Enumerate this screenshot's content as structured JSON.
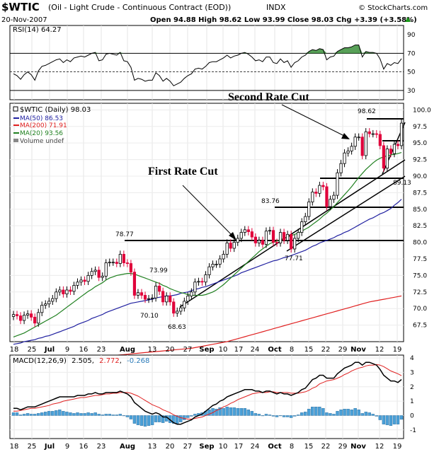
{
  "header": {
    "symbol": "$WTIC",
    "description": "(Oil - Light Crude - Continuous Contract (EOD))",
    "exchange": "INDX",
    "date": "20-Nov-2007",
    "quote": "Open 94.88  High 98.62  Low 93.99  Close 98.03  Chg +3.39 (+3.58%)",
    "quote_direction": "up",
    "watermark": "© StockCharts.com"
  },
  "colors": {
    "up_candle": "#ffffff",
    "down_candle": "#e0003a",
    "ma50": "#2020a0",
    "ma200": "#e02020",
    "ma20": "#208020",
    "macd_line": "#000000",
    "signal_line": "#e02020",
    "histogram": "#4aa0d8",
    "rsi_fill": "#208020"
  },
  "rsi": {
    "legend": "RSI(14) 64.27",
    "ylim": [
      20,
      100
    ],
    "ticks": [
      "90",
      "70",
      "50",
      "30"
    ],
    "levels": [
      70,
      50,
      30
    ]
  },
  "main": {
    "legend_title": "$WTIC (Daily) 98.03",
    "legend_ma50": "MA(50) 86.53",
    "legend_ma200": "MA(200) 71.91",
    "legend_ma20": "MA(20) 93.56",
    "legend_volume": "Volume undef",
    "ylim": [
      65,
      101
    ],
    "ticks": [
      "100.0",
      "97.5",
      "95.0",
      "92.5",
      "90.0",
      "87.5",
      "85.0",
      "82.5",
      "80.0",
      "77.5",
      "75.0",
      "72.5",
      "70.0",
      "67.5"
    ],
    "annotations": {
      "second_rate_cut": "Second Rate Cut",
      "first_rate_cut": "First Rate Cut"
    },
    "price_labels": {
      "p_98_62": "98.62",
      "p_89_13": "89.13",
      "p_83_76": "83.76",
      "p_78_77": "78.77",
      "p_73_99": "73.99",
      "p_70_10": "70.10",
      "p_68_63": "68.63",
      "p_77_71": "77.71"
    }
  },
  "macd": {
    "legend_name": "MACD(12,26,9)",
    "legend_macd": "2.505",
    "legend_signal": "2.772",
    "legend_hist": "-0.268",
    "ylim": [
      -1.6,
      4.2
    ],
    "ticks": [
      "4",
      "3",
      "2",
      "1",
      "0",
      "-1"
    ]
  },
  "xaxis": {
    "labels": [
      "18",
      "25",
      "Jul",
      "9",
      "16",
      "23",
      "Aug",
      "13",
      "20",
      "27",
      "Sep",
      "10",
      "17",
      "24",
      "Oct",
      "8",
      "15",
      "22",
      "29",
      "Nov",
      "12",
      "19"
    ],
    "bold": [
      "Jul",
      "Aug",
      "Sep",
      "Oct",
      "Nov"
    ]
  },
  "chart_data": {
    "type": "candlestick",
    "title": "$WTIC (Daily) 98.03",
    "x": [
      "Jun 18",
      "Jun 19",
      "Jun 20",
      "Jun 21",
      "Jun 22",
      "Jun 25",
      "Jun 26",
      "Jun 27",
      "Jun 28",
      "Jun 29",
      "Jul 2",
      "Jul 3",
      "Jul 5",
      "Jul 6",
      "Jul 9",
      "Jul 10",
      "Jul 11",
      "Jul 12",
      "Jul 13",
      "Jul 16",
      "Jul 17",
      "Jul 18",
      "Jul 19",
      "Jul 20",
      "Jul 23",
      "Jul 24",
      "Jul 25",
      "Jul 26",
      "Jul 27",
      "Jul 30",
      "Jul 31",
      "Aug 1",
      "Aug 2",
      "Aug 3",
      "Aug 6",
      "Aug 7",
      "Aug 8",
      "Aug 9",
      "Aug 10",
      "Aug 13",
      "Aug 14",
      "Aug 15",
      "Aug 16",
      "Aug 17",
      "Aug 20",
      "Aug 21",
      "Aug 22",
      "Aug 23",
      "Aug 24",
      "Aug 27",
      "Aug 28",
      "Aug 29",
      "Aug 30",
      "Aug 31",
      "Sep 4",
      "Sep 5",
      "Sep 6",
      "Sep 7",
      "Sep 10",
      "Sep 11",
      "Sep 12",
      "Sep 13",
      "Sep 14",
      "Sep 17",
      "Sep 18",
      "Sep 19",
      "Sep 20",
      "Sep 21",
      "Sep 24",
      "Sep 25",
      "Sep 26",
      "Sep 27",
      "Sep 28",
      "Oct 1",
      "Oct 2",
      "Oct 3",
      "Oct 4",
      "Oct 5",
      "Oct 8",
      "Oct 9",
      "Oct 10",
      "Oct 11",
      "Oct 12",
      "Oct 15",
      "Oct 16",
      "Oct 17",
      "Oct 18",
      "Oct 19",
      "Oct 22",
      "Oct 23",
      "Oct 24",
      "Oct 25",
      "Oct 26",
      "Oct 29",
      "Oct 30",
      "Oct 31",
      "Nov 1",
      "Nov 2",
      "Nov 5",
      "Nov 6",
      "Nov 7",
      "Nov 8",
      "Nov 9",
      "Nov 12",
      "Nov 13",
      "Nov 14",
      "Nov 15",
      "Nov 16",
      "Nov 19",
      "Nov 20"
    ],
    "close": [
      69.1,
      68.9,
      68.2,
      69.0,
      69.2,
      68.7,
      67.8,
      69.4,
      70.5,
      70.7,
      71.1,
      71.5,
      72.5,
      72.8,
      72.2,
      72.8,
      72.6,
      73.5,
      74.0,
      74.3,
      74.1,
      75.0,
      75.6,
      75.8,
      74.7,
      74.9,
      76.9,
      77.0,
      77.0,
      76.8,
      78.2,
      76.9,
      76.8,
      75.5,
      72.0,
      72.4,
      72.0,
      71.4,
      71.5,
      71.6,
      73.4,
      72.6,
      71.0,
      71.9,
      71.0,
      69.3,
      69.6,
      70.1,
      71.1,
      71.9,
      72.5,
      74.0,
      74.1,
      74.0,
      75.1,
      76.3,
      76.7,
      76.7,
      77.5,
      78.2,
      79.9,
      79.1,
      80.0,
      80.6,
      81.5,
      81.9,
      81.6,
      80.8,
      79.9,
      80.3,
      79.7,
      81.7,
      81.8,
      80.0,
      79.9,
      81.5,
      80.3,
      81.2,
      79.0,
      80.6,
      81.5,
      83.1,
      83.9,
      86.1,
      87.6,
      87.4,
      88.6,
      88.4,
      85.4,
      86.5,
      87.1,
      90.5,
      91.9,
      93.5,
      93.8,
      94.5,
      95.9,
      95.9,
      93.1,
      96.7,
      96.4,
      96.4,
      96.3,
      94.6,
      91.2,
      94.1,
      93.4,
      94.8,
      94.6,
      98.0
    ],
    "ma50": [
      64.6,
      64.7,
      64.8,
      65.0,
      65.1,
      65.2,
      65.3,
      65.5,
      65.6,
      65.8,
      65.9,
      66.1,
      66.3,
      66.5,
      66.7,
      66.9,
      67.1,
      67.3,
      67.6,
      67.8,
      68.0,
      68.2,
      68.5,
      68.7,
      68.9,
      69.1,
      69.4,
      69.6,
      69.8,
      70.0,
      70.2,
      70.4,
      70.6,
      70.8,
      70.9,
      71.0,
      71.1,
      71.2,
      71.3,
      71.4,
      71.6,
      71.7,
      71.8,
      71.9,
      71.9,
      72.0,
      72.1,
      72.3,
      72.4,
      72.5,
      72.7,
      72.9,
      73.0,
      73.2,
      73.3,
      73.5,
      73.7,
      73.9,
      74.1,
      74.3,
      74.5,
      74.7,
      74.9,
      75.1,
      75.4,
      75.6,
      75.8,
      76.0,
      76.2,
      76.4,
      76.6,
      76.8,
      77.0,
      77.2,
      77.3,
      77.5,
      77.7,
      77.8,
      78.0,
      78.2,
      78.4,
      78.6,
      78.8,
      79.1,
      79.4,
      79.6,
      79.9,
      80.1,
      80.3,
      80.5,
      80.7,
      81.0,
      81.2,
      81.5,
      81.7,
      82.0,
      82.3,
      82.6,
      82.9,
      83.2,
      83.5,
      83.7,
      84.0,
      84.3,
      84.5,
      84.8,
      85.1,
      85.6,
      86.0,
      86.5
    ],
    "ma200": [
      61.5,
      61.55,
      61.6,
      61.65,
      61.7,
      61.75,
      61.8,
      61.85,
      61.9,
      61.95,
      62.0,
      62.05,
      62.1,
      62.15,
      62.2,
      62.25,
      62.3,
      62.35,
      62.4,
      62.45,
      62.5,
      62.55,
      62.6,
      62.65,
      62.7,
      62.75,
      62.8,
      62.85,
      62.9,
      62.95,
      63.0,
      63.05,
      63.1,
      63.15,
      63.2,
      63.25,
      63.3,
      63.35,
      63.4,
      63.45,
      63.5,
      63.55,
      63.6,
      63.65,
      63.7,
      63.75,
      63.8,
      63.85,
      63.9,
      63.95,
      64.0,
      64.1,
      64.2,
      64.3,
      64.4,
      64.5,
      64.6,
      64.7,
      64.8,
      64.9,
      65.0,
      65.15,
      65.3,
      65.45,
      65.6,
      65.75,
      65.9,
      66.05,
      66.2,
      66.35,
      66.5,
      66.65,
      66.8,
      66.95,
      67.1,
      67.25,
      67.4,
      67.55,
      67.7,
      67.85,
      68.0,
      68.15,
      68.3,
      68.45,
      68.6,
      68.75,
      68.9,
      69.05,
      69.2,
      69.35,
      69.5,
      69.65,
      69.8,
      69.95,
      70.1,
      70.25,
      70.4,
      70.55,
      70.7,
      70.85,
      71.0,
      71.1,
      71.2,
      71.3,
      71.4,
      71.5,
      71.6,
      71.7,
      71.8,
      71.9
    ],
    "ma20": [
      65.7,
      65.9,
      66.1,
      66.3,
      66.6,
      66.9,
      67.2,
      67.5,
      67.8,
      68.1,
      68.4,
      68.7,
      69.0,
      69.4,
      69.8,
      70.2,
      70.6,
      71.0,
      71.4,
      71.8,
      72.2,
      72.6,
      72.9,
      73.3,
      73.6,
      73.9,
      74.3,
      74.6,
      74.8,
      75.0,
      75.1,
      75.2,
      75.3,
      75.3,
      75.2,
      75.0,
      74.8,
      74.6,
      74.4,
      74.2,
      74.0,
      73.8,
      73.5,
      73.3,
      73.0,
      72.8,
      72.6,
      72.4,
      72.3,
      72.1,
      72.0,
      72.0,
      72.0,
      72.0,
      72.1,
      72.3,
      72.5,
      72.8,
      73.2,
      73.6,
      74.1,
      74.6,
      75.1,
      75.6,
      76.1,
      76.6,
      77.1,
      77.6,
      78.1,
      78.6,
      79.0,
      79.4,
      79.8,
      80.0,
      80.2,
      80.4,
      80.6,
      80.8,
      81.0,
      81.2,
      81.4,
      81.7,
      82.0,
      82.3,
      82.7,
      83.1,
      83.5,
      84.0,
      84.4,
      84.9,
      85.4,
      86.0,
      86.6,
      87.2,
      87.8,
      88.4,
      89.1,
      89.8,
      90.4,
      91.0,
      91.5,
      92.0,
      92.4,
      92.7,
      92.9,
      93.1,
      93.2,
      93.3,
      93.4,
      93.56
    ],
    "rsi": [
      48,
      46,
      42,
      47,
      50,
      47,
      41,
      51,
      56,
      57,
      59,
      61,
      63,
      64,
      60,
      63,
      61,
      65,
      66,
      67,
      66,
      68,
      70,
      71,
      62,
      63,
      69,
      70,
      69,
      68,
      71,
      62,
      61,
      55,
      41,
      43,
      42,
      40,
      41,
      41,
      49,
      46,
      40,
      43,
      40,
      35,
      37,
      39,
      43,
      46,
      48,
      53,
      54,
      53,
      56,
      60,
      61,
      61,
      63,
      65,
      68,
      65,
      67,
      68,
      70,
      71,
      69,
      66,
      62,
      63,
      61,
      66,
      66,
      60,
      59,
      64,
      60,
      62,
      55,
      60,
      62,
      66,
      68,
      72,
      74,
      73,
      75,
      74,
      63,
      66,
      67,
      72,
      74,
      76,
      76,
      77,
      79,
      79,
      66,
      72,
      71,
      71,
      70,
      64,
      53,
      59,
      57,
      60,
      59,
      64.27
    ],
    "macd": [
      0.5,
      0.5,
      0.4,
      0.5,
      0.6,
      0.6,
      0.6,
      0.7,
      0.8,
      0.9,
      1.0,
      1.1,
      1.2,
      1.3,
      1.3,
      1.3,
      1.3,
      1.3,
      1.4,
      1.4,
      1.4,
      1.5,
      1.5,
      1.6,
      1.5,
      1.5,
      1.6,
      1.6,
      1.6,
      1.6,
      1.7,
      1.6,
      1.5,
      1.3,
      0.9,
      0.7,
      0.5,
      0.3,
      0.2,
      0.1,
      0.2,
      0.1,
      -0.1,
      -0.1,
      -0.3,
      -0.5,
      -0.6,
      -0.6,
      -0.5,
      -0.4,
      -0.3,
      -0.1,
      0.0,
      0.1,
      0.3,
      0.5,
      0.7,
      0.8,
      1.0,
      1.1,
      1.3,
      1.4,
      1.5,
      1.6,
      1.7,
      1.8,
      1.8,
      1.8,
      1.7,
      1.7,
      1.6,
      1.7,
      1.7,
      1.6,
      1.5,
      1.6,
      1.5,
      1.5,
      1.4,
      1.5,
      1.6,
      1.8,
      1.9,
      2.2,
      2.5,
      2.6,
      2.8,
      2.8,
      2.6,
      2.6,
      2.6,
      2.9,
      3.1,
      3.3,
      3.4,
      3.5,
      3.7,
      3.7,
      3.5,
      3.7,
      3.7,
      3.6,
      3.5,
      3.2,
      2.8,
      2.6,
      2.4,
      2.4,
      2.3,
      2.505
    ],
    "signal": [
      0.3,
      0.3,
      0.35,
      0.4,
      0.45,
      0.5,
      0.5,
      0.55,
      0.6,
      0.65,
      0.7,
      0.8,
      0.85,
      0.9,
      1.0,
      1.05,
      1.1,
      1.15,
      1.2,
      1.25,
      1.25,
      1.3,
      1.35,
      1.4,
      1.4,
      1.45,
      1.5,
      1.5,
      1.55,
      1.55,
      1.6,
      1.6,
      1.6,
      1.55,
      1.45,
      1.35,
      1.2,
      1.05,
      0.9,
      0.75,
      0.65,
      0.55,
      0.4,
      0.3,
      0.2,
      0.05,
      -0.05,
      -0.15,
      -0.2,
      -0.25,
      -0.25,
      -0.2,
      -0.15,
      -0.1,
      0.0,
      0.1,
      0.2,
      0.35,
      0.45,
      0.6,
      0.7,
      0.85,
      0.95,
      1.1,
      1.2,
      1.3,
      1.4,
      1.5,
      1.55,
      1.6,
      1.6,
      1.6,
      1.65,
      1.65,
      1.6,
      1.6,
      1.6,
      1.6,
      1.55,
      1.55,
      1.55,
      1.6,
      1.65,
      1.75,
      1.9,
      2.0,
      2.2,
      2.3,
      2.4,
      2.45,
      2.5,
      2.6,
      2.7,
      2.85,
      2.95,
      3.1,
      3.2,
      3.3,
      3.35,
      3.45,
      3.5,
      3.5,
      3.55,
      3.5,
      3.4,
      3.25,
      3.1,
      3.0,
      2.9,
      2.772
    ]
  }
}
